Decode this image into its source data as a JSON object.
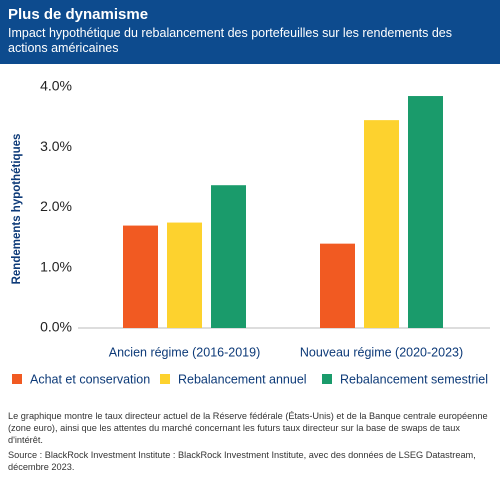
{
  "chart_data": {
    "type": "bar",
    "title": "Plus de dynamisme",
    "subtitle": "Impact hypothétique du rebalancement  des portefeuilles sur les rendements des actions américaines",
    "y_label": "Rendements hypothétiques",
    "categories": [
      "Ancien régime (2016-2019)",
      "Nouveau régime (2020-2023)"
    ],
    "series": [
      {
        "name": "Achat et conservation",
        "color": "#f15a22",
        "values": [
          1.7,
          1.4
        ]
      },
      {
        "name": "Rebalancement annuel",
        "color": "#fdd22e",
        "values": [
          1.75,
          3.45
        ]
      },
      {
        "name": "Rebalancement semestriel",
        "color": "#1a9b6b",
        "values": [
          2.37,
          3.85
        ]
      }
    ],
    "ylim": [
      0,
      4
    ],
    "yticks": [
      {
        "value": 0,
        "label": "0.0%"
      },
      {
        "value": 1,
        "label": "1.0%"
      },
      {
        "value": 2,
        "label": "2.0%"
      },
      {
        "value": 3,
        "label": "3.0%"
      },
      {
        "value": 4,
        "label": "4.0%"
      }
    ],
    "grid": false,
    "note": "Le graphique montre le taux directeur actuel de la Réserve fédérale (États-Unis) et de la Banque centrale européenne (zone euro), ainsi que les attentes du marché concernant les futurs taux directeur sur la base de swaps de taux d'intérêt.",
    "source": "Source : BlackRock Investment Institute : BlackRock Investment Institute, avec des données de LSEG Datastream, décembre 2023."
  }
}
